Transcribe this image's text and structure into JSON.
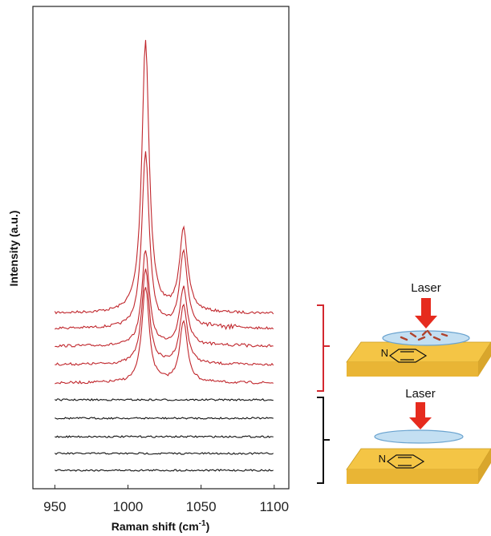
{
  "chart_data": {
    "type": "line",
    "xlabel_main": "Raman shift (cm",
    "xlabel_sup": "-1",
    "xlabel_tail": ")",
    "ylabel": "Intensity (a.u.)",
    "xlim": [
      935,
      1110
    ],
    "xticks": [
      "950",
      "1000",
      "1050",
      "1100"
    ],
    "xtick_values": [
      950,
      1000,
      1050,
      1100
    ],
    "x_range": [
      950,
      1100
    ],
    "series_groups": [
      {
        "color": "#c0262c",
        "traces": [
          {
            "baseline": 391,
            "peaks": [
              [
                1012,
                340,
                3.0
              ],
              [
                1038,
                105,
                3.2
              ]
            ]
          },
          {
            "baseline": 410,
            "peaks": [
              [
                1012,
                220,
                3.0
              ],
              [
                1038,
                95,
                3.2
              ]
            ]
          },
          {
            "baseline": 432,
            "peaks": [
              [
                1012,
                120,
                3.0
              ],
              [
                1038,
                73,
                3.2
              ]
            ]
          },
          {
            "baseline": 455,
            "peaks": [
              [
                1012,
                120,
                3.0
              ],
              [
                1038,
                73,
                3.2
              ]
            ]
          },
          {
            "baseline": 478,
            "peaks": [
              [
                1012,
                120,
                3.0
              ],
              [
                1038,
                76,
                3.2
              ]
            ]
          }
        ]
      },
      {
        "color": "#111111",
        "traces": [
          {
            "baseline": 499,
            "peaks": []
          },
          {
            "baseline": 522,
            "peaks": []
          },
          {
            "baseline": 545,
            "peaks": []
          },
          {
            "baseline": 566,
            "peaks": []
          },
          {
            "baseline": 587,
            "peaks": []
          }
        ]
      }
    ]
  },
  "schematic": {
    "top_label": "Laser",
    "bottom_label": "Laser",
    "atom_label": "N",
    "red_bracket_color": "#d3282f",
    "black_bracket_color": "#111111",
    "arrow_color": "#e62b1e",
    "substrate_color": "#f4c545",
    "substrate_side_color": "#d9a62c",
    "disk_color": "#c3dff2",
    "disk_edge_color": "#6aa3cf",
    "particle_color": "#b0432d"
  }
}
